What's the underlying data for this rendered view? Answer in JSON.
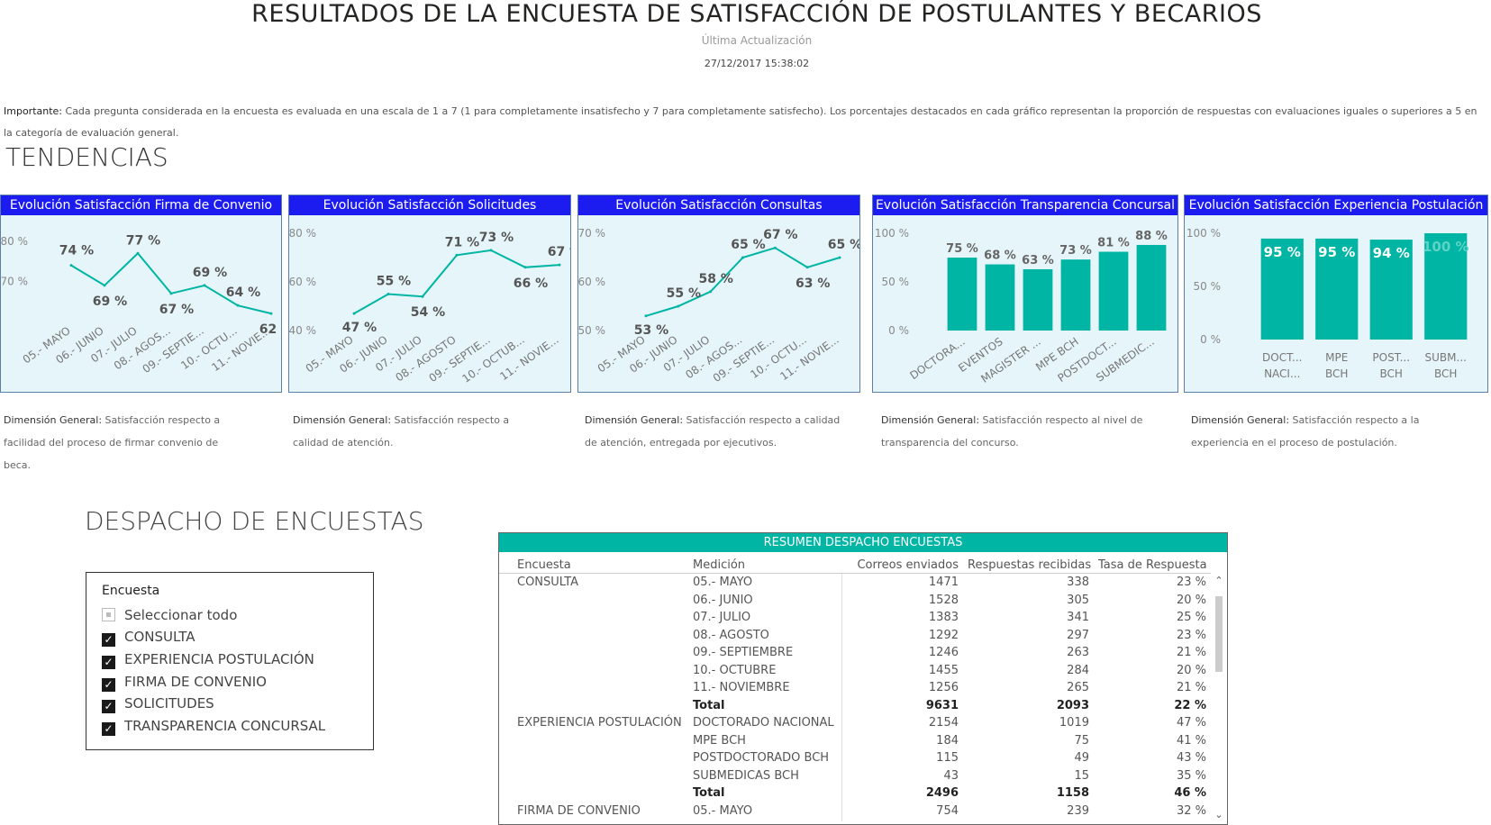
{
  "header": {
    "title": "RESULTADOS DE LA ENCUESTA DE SATISFACCIÓN DE POSTULANTES Y BECARIOS",
    "update_label": "Última Actualización",
    "update_date": "27/12/2017 15:38:02"
  },
  "note": {
    "bold": "Importante:",
    "text": " Cada pregunta considerada en la encuesta es evaluada en una escala de 1 a 7 (1 para completamente insatisfecho y 7 para completamente satisfecho). Los porcentajes destacados en cada gráfico representan la proporción de respuestas con evaluaciones iguales o superiores a 5 en la categoría de evaluación general."
  },
  "sections": {
    "tendencias": "TENDENCIAS",
    "despacho": "DESPACHO DE ENCUESTAS"
  },
  "colors": {
    "header_blue": "#1c1cf0",
    "teal": "#00b5a3",
    "card_bg": "#e6f5fa"
  },
  "cards": [
    {
      "title": "Evolución Satisfacción Firma de Convenio",
      "desc_label": "Dimensión General:",
      "desc_text": " Satisfacción respecto a facilidad del proceso de firmar convenio de beca."
    },
    {
      "title": "Evolución Satisfacción Solicitudes",
      "desc_label": "Dimensión General:",
      "desc_text": " Satisfacción respecto a calidad de atención."
    },
    {
      "title": "Evolución Satisfacción Consultas",
      "desc_label": "Dimensión General:",
      "desc_text": " Satisfacción respecto a calidad de atención, entregada por ejecutivos."
    },
    {
      "title": "Evolución Satisfacción Transparencia Concursal",
      "desc_label": "Dimensión General:",
      "desc_text": " Satisfacción respecto al nivel de transparencia del concurso."
    },
    {
      "title": "Evolución Satisfacción Experiencia Postulación",
      "desc_label": "Dimensión General:",
      "desc_text": " Satisfacción respecto a la experiencia en el proceso de postulación."
    }
  ],
  "chart_data": [
    {
      "type": "line",
      "categories": [
        "05.- MAYO",
        "06.- JUNIO",
        "07.- JULIO",
        "08.- AGOS...",
        "09.- SEPTIE...",
        "10.- OCTU...",
        "11.- NOVIE..."
      ],
      "values": [
        74,
        69,
        77,
        67,
        69,
        64,
        62
      ],
      "labels": [
        "74 %",
        "69 %",
        "77 %",
        "67 %",
        "69 %",
        "64 %",
        "62 %"
      ],
      "yticks": [
        "80 %",
        "70 %"
      ],
      "ytick_values": [
        80,
        70
      ],
      "ylim": [
        60,
        82
      ]
    },
    {
      "type": "line",
      "categories": [
        "05.- MAYO",
        "06.- JUNIO",
        "07.- JULIO",
        "08.- AGOSTO",
        "09.- SEPTIE...",
        "10.- OCTUB...",
        "11.- NOVIE..."
      ],
      "values": [
        47,
        55,
        54,
        71,
        73,
        66,
        67
      ],
      "labels": [
        "47 %",
        "55 %",
        "54 %",
        "71 %",
        "73 %",
        "66 %",
        "67 %"
      ],
      "yticks": [
        "80 %",
        "60 %",
        "40 %"
      ],
      "ytick_values": [
        80,
        60,
        40
      ],
      "ylim": [
        40,
        80
      ]
    },
    {
      "type": "line",
      "categories": [
        "05.- MAYO",
        "06.- JUNIO",
        "07.- JULIO",
        "08.- AGOS...",
        "09.- SEPTIE...",
        "10.- OCTU...",
        "11.- NOVIE..."
      ],
      "values": [
        53,
        55,
        58,
        65,
        67,
        63,
        65
      ],
      "labels": [
        "53 %",
        "55 %",
        "58 %",
        "65 %",
        "67 %",
        "63 %",
        "65 %"
      ],
      "yticks": [
        "70 %",
        "60 %",
        "50 %"
      ],
      "ytick_values": [
        70,
        60,
        50
      ],
      "ylim": [
        50,
        70
      ]
    },
    {
      "type": "bar",
      "categories": [
        "DOCTORA...",
        "EVENTOS",
        "MAGISTER ...",
        "MPE BCH",
        "POSTDOCT...",
        "SUBMEDIC..."
      ],
      "values": [
        75,
        68,
        63,
        73,
        81,
        88
      ],
      "labels": [
        "75 %",
        "68 %",
        "63 %",
        "73 %",
        "81 %",
        "88 %"
      ],
      "yticks": [
        "100 %",
        "50 %",
        "0 %"
      ],
      "ytick_values": [
        100,
        50,
        0
      ],
      "ylim": [
        0,
        100
      ]
    },
    {
      "type": "bar",
      "categories": [
        "DOCT... NACI...",
        "MPE BCH",
        "POST... BCH",
        "SUBM... BCH"
      ],
      "values": [
        95,
        95,
        94,
        100
      ],
      "labels": [
        "95 %",
        "95 %",
        "94 %",
        "100 %"
      ],
      "yticks": [
        "100 %",
        "50 %",
        "0 %"
      ],
      "ytick_values": [
        100,
        50,
        0
      ],
      "ylim": [
        0,
        100
      ]
    }
  ],
  "slicer": {
    "title": "Encuesta",
    "items": [
      {
        "label": "Seleccionar todo",
        "state": "partial"
      },
      {
        "label": "CONSULTA",
        "state": "checked"
      },
      {
        "label": "EXPERIENCIA POSTULACIÓN",
        "state": "checked"
      },
      {
        "label": "FIRMA DE CONVENIO",
        "state": "checked"
      },
      {
        "label": "SOLICITUDES",
        "state": "checked"
      },
      {
        "label": "TRANSPARENCIA CONCURSAL",
        "state": "checked"
      }
    ]
  },
  "table": {
    "title": "RESUMEN DESPACHO ENCUESTAS",
    "columns": [
      "Encuesta",
      "Medición",
      "Correos enviados",
      "Respuestas recibidas",
      "Tasa de Respuesta"
    ],
    "rows": [
      {
        "enc": "CONSULTA",
        "med": "05.- MAYO",
        "sent": "1471",
        "recv": "338",
        "rate": "23 %"
      },
      {
        "enc": "",
        "med": "06.- JUNIO",
        "sent": "1528",
        "recv": "305",
        "rate": "20 %"
      },
      {
        "enc": "",
        "med": "07.- JULIO",
        "sent": "1383",
        "recv": "341",
        "rate": "25 %"
      },
      {
        "enc": "",
        "med": "08.- AGOSTO",
        "sent": "1292",
        "recv": "297",
        "rate": "23 %"
      },
      {
        "enc": "",
        "med": "09.- SEPTIEMBRE",
        "sent": "1246",
        "recv": "263",
        "rate": "21 %"
      },
      {
        "enc": "",
        "med": "10.- OCTUBRE",
        "sent": "1455",
        "recv": "284",
        "rate": "20 %"
      },
      {
        "enc": "",
        "med": "11.- NOVIEMBRE",
        "sent": "1256",
        "recv": "265",
        "rate": "21 %"
      },
      {
        "enc": "",
        "med": "Total",
        "sent": "9631",
        "recv": "2093",
        "rate": "22 %",
        "total": true
      },
      {
        "enc": "EXPERIENCIA POSTULACIÓN",
        "med": "DOCTORADO NACIONAL",
        "sent": "2154",
        "recv": "1019",
        "rate": "47 %"
      },
      {
        "enc": "",
        "med": "MPE BCH",
        "sent": "184",
        "recv": "75",
        "rate": "41 %"
      },
      {
        "enc": "",
        "med": "POSTDOCTORADO BCH",
        "sent": "115",
        "recv": "49",
        "rate": "43 %"
      },
      {
        "enc": "",
        "med": "SUBMEDICAS  BCH",
        "sent": "43",
        "recv": "15",
        "rate": "35 %"
      },
      {
        "enc": "",
        "med": "Total",
        "sent": "2496",
        "recv": "1158",
        "rate": "46 %",
        "total": true
      },
      {
        "enc": "FIRMA DE CONVENIO",
        "med": "05.- MAYO",
        "sent": "754",
        "recv": "239",
        "rate": "32 %"
      }
    ]
  }
}
